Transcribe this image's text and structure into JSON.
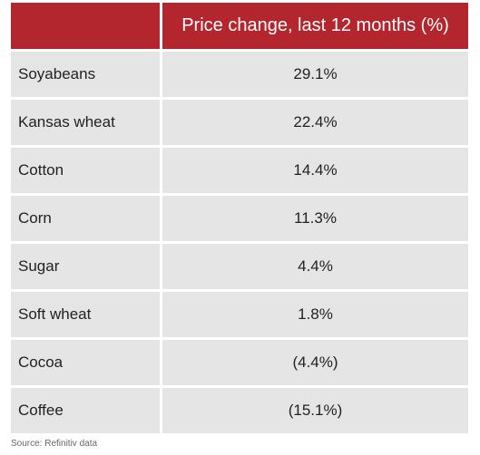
{
  "chart_data": {
    "type": "table",
    "columns": [
      "",
      "Price change, last 12 months (%)"
    ],
    "rows": [
      {
        "name": "Soyabeans",
        "value": 29.1,
        "label": "29.1%"
      },
      {
        "name": "Kansas wheat",
        "value": 22.4,
        "label": "22.4%"
      },
      {
        "name": "Cotton",
        "value": 14.4,
        "label": "14.4%"
      },
      {
        "name": "Corn",
        "value": 11.3,
        "label": "11.3%"
      },
      {
        "name": "Sugar",
        "value": 4.4,
        "label": "4.4%"
      },
      {
        "name": "Soft wheat",
        "value": 1.8,
        "label": "1.8%"
      },
      {
        "name": "Cocoa",
        "value": -4.4,
        "label": "(4.4%)"
      },
      {
        "name": "Coffee",
        "value": -15.1,
        "label": "(15.1%)"
      }
    ]
  },
  "source": "Source: Refinitiv data",
  "colors": {
    "header_bg": "#b4262e",
    "row_bg": "#e5e5e5"
  }
}
